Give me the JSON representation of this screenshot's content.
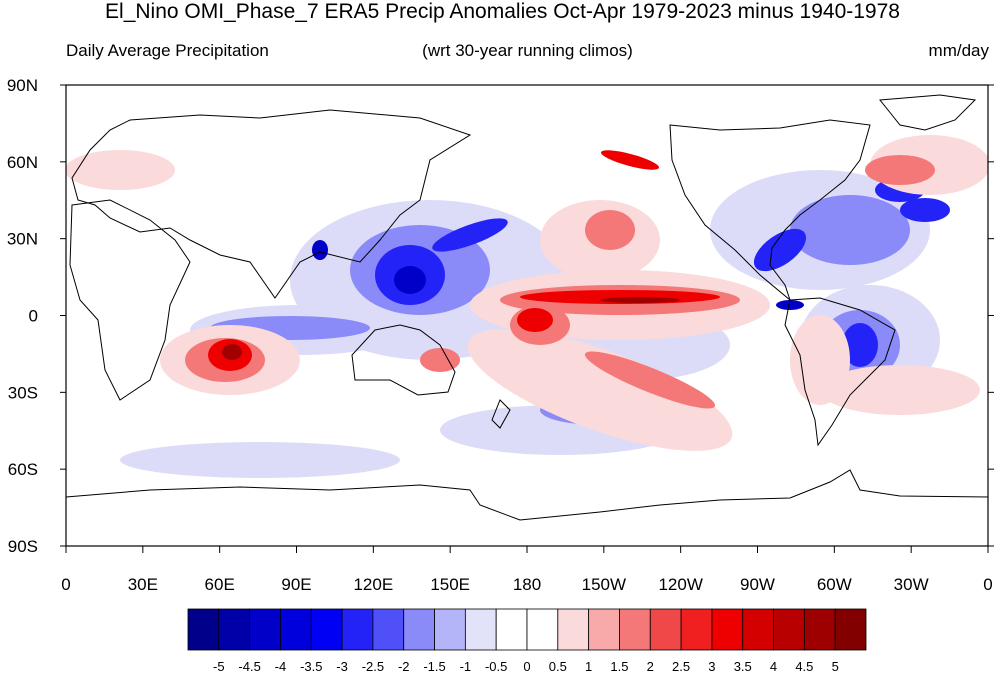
{
  "title": "El_Nino OMI_Phase_7 ERA5 Precip Anomalies Oct-Apr 1979-2023 minus 1940-1978",
  "subtitle_left": "Daily Average Precipitation",
  "subtitle_center": "(wrt 30-year running climos)",
  "subtitle_right": "mm/day",
  "lat_ticks": [
    "90N",
    "60N",
    "30N",
    "0",
    "30S",
    "60S",
    "90S"
  ],
  "lon_ticks": [
    "0",
    "30E",
    "60E",
    "90E",
    "120E",
    "150E",
    "180",
    "150W",
    "120W",
    "90W",
    "60W",
    "30W",
    "0"
  ],
  "colorbar": {
    "labels": [
      "-5",
      "-4.5",
      "-4",
      "-3.5",
      "-3",
      "-2.5",
      "-2",
      "-1.5",
      "-1",
      "-0.5",
      "0",
      "0.5",
      "1",
      "1.5",
      "2",
      "2.5",
      "3",
      "3.5",
      "4",
      "4.5",
      "5"
    ],
    "colors": [
      "#00008b",
      "#0000a8",
      "#0000c8",
      "#0000dd",
      "#0000f5",
      "#2323f8",
      "#5050f8",
      "#8a8af8",
      "#b4b4f8",
      "#e2e2f8",
      "#ffffff",
      "#ffffff",
      "#fadada",
      "#f8aaaa",
      "#f47878",
      "#f04848",
      "#f02020",
      "#ee0000",
      "#d40000",
      "#b80000",
      "#9e0000",
      "#820000"
    ]
  }
}
